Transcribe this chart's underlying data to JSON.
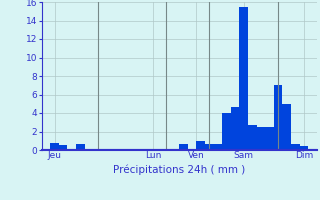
{
  "title": "Précipitations 24h ( mm )",
  "bar_color": "#0044dd",
  "bg_color": "#d8f4f4",
  "grid_color": "#b0c8c8",
  "axis_color": "#3333cc",
  "tick_color": "#3333cc",
  "label_color": "#3333cc",
  "ylim": [
    0,
    16
  ],
  "yticks": [
    0,
    2,
    4,
    6,
    8,
    10,
    12,
    14,
    16
  ],
  "bar_values": [
    0,
    0.8,
    0.5,
    0,
    0.7,
    0,
    0,
    0,
    0,
    0,
    0,
    0,
    0,
    0,
    0,
    0,
    0.7,
    0,
    1.0,
    0.7,
    0.7,
    4.0,
    4.7,
    15.5,
    2.7,
    2.5,
    2.5,
    7.0,
    5.0,
    0.6,
    0.4,
    0
  ],
  "day_labels": [
    "Jeu",
    "Lun",
    "Ven",
    "Sam",
    "Dim"
  ],
  "day_positions": [
    1,
    12.5,
    17.5,
    23,
    30
  ],
  "vline_positions": [
    6,
    14,
    19,
    27
  ],
  "n_bars": 32
}
